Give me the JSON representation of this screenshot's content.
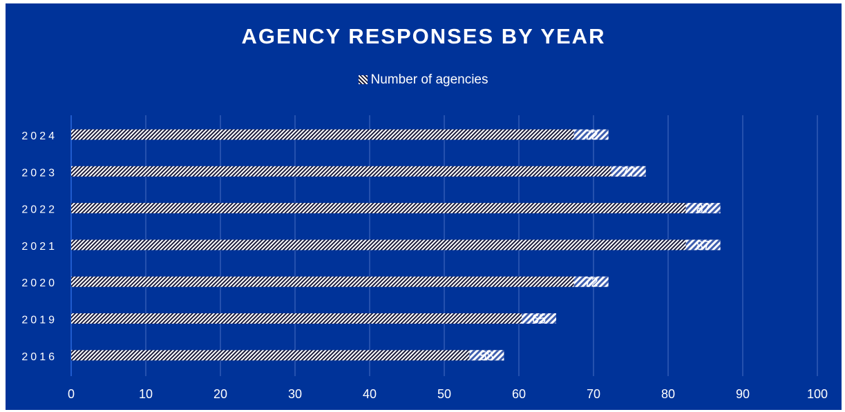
{
  "chart_data": {
    "type": "bar",
    "orientation": "horizontal",
    "title": "AGENCY RESPONSES BY YEAR",
    "categories": [
      "2024",
      "2023",
      "2022",
      "2021",
      "2020",
      "2019",
      "2016"
    ],
    "series": [
      {
        "name": "Number of agencies",
        "values": [
          72,
          77,
          87,
          87,
          72,
          65,
          58
        ]
      }
    ],
    "xlim": [
      0,
      100
    ],
    "x_ticks": [
      0,
      10,
      20,
      30,
      40,
      50,
      60,
      70,
      80,
      90,
      100
    ],
    "grid": "vertical",
    "legend_position": "top",
    "data_labels": true
  },
  "colors": {
    "background": "#003399",
    "text": "#ffffff",
    "gridline": "#4a6fc4",
    "bar_pattern_dark": "#1a1a3a",
    "bar_pattern_light": "#ffffff"
  }
}
